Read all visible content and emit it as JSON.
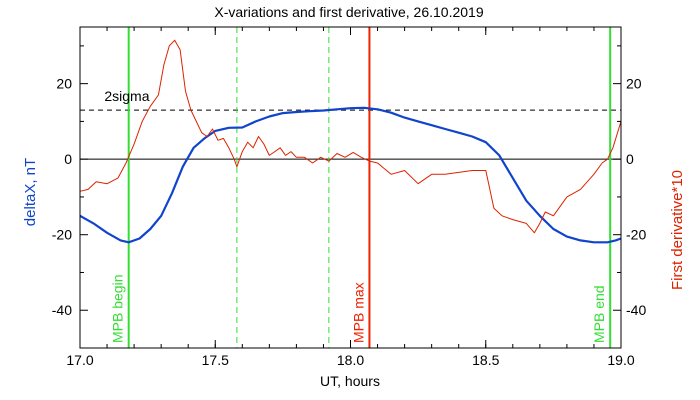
{
  "chart_data": {
    "type": "line",
    "title": "X-variations and first derivative, 26.10.2019",
    "xlabel": "UT, hours",
    "ylabel_left": "deltaX, nT",
    "ylabel_right": "First derivative*10",
    "xlim": [
      17.0,
      19.0
    ],
    "ylim": [
      -50,
      35
    ],
    "xticks": [
      {
        "value": 17.0,
        "label": "17.0"
      },
      {
        "value": 17.5,
        "label": "17.5"
      },
      {
        "value": 18.0,
        "label": "18.0"
      },
      {
        "value": 18.5,
        "label": "18.5"
      },
      {
        "value": 19.0,
        "label": "19.0"
      }
    ],
    "yticks_left": [
      {
        "value": 20,
        "label": "20"
      },
      {
        "value": 0,
        "label": "0"
      },
      {
        "value": -20,
        "label": "-20"
      },
      {
        "value": -40,
        "label": "-40"
      }
    ],
    "yticks_right": [
      {
        "value": 20,
        "label": "20"
      },
      {
        "value": 0,
        "label": "0"
      },
      {
        "value": -20,
        "label": "-20"
      },
      {
        "value": -40,
        "label": "-40"
      }
    ],
    "sigma_level": {
      "value": 13,
      "label": "2sigma",
      "color": "#000000"
    },
    "zero_line": {
      "value": 0,
      "color": "#000000"
    },
    "vertical_markers": [
      {
        "x": 17.18,
        "label": "MPB begin",
        "color": "#33dd33",
        "style": "solid"
      },
      {
        "x": 17.58,
        "label": "",
        "color": "#33dd33",
        "style": "dashed"
      },
      {
        "x": 17.92,
        "label": "",
        "color": "#33dd33",
        "style": "dashed"
      },
      {
        "x": 18.07,
        "label": "MPB max",
        "color": "#ee2200",
        "style": "solid"
      },
      {
        "x": 18.96,
        "label": "MPB end",
        "color": "#33dd33",
        "style": "solid"
      }
    ],
    "series": [
      {
        "key": "deltaX",
        "color": "#1144cc",
        "x": [
          17.0,
          17.05,
          17.1,
          17.15,
          17.18,
          17.22,
          17.26,
          17.3,
          17.34,
          17.38,
          17.42,
          17.46,
          17.5,
          17.55,
          17.6,
          17.65,
          17.7,
          17.75,
          17.8,
          17.85,
          17.9,
          17.95,
          18.0,
          18.05,
          18.1,
          18.15,
          18.2,
          18.25,
          18.3,
          18.35,
          18.4,
          18.45,
          18.5,
          18.55,
          18.6,
          18.65,
          18.7,
          18.75,
          18.8,
          18.85,
          18.9,
          18.95,
          18.98,
          19.0
        ],
        "y": [
          -15,
          -17,
          -19.5,
          -21.5,
          -22,
          -21,
          -18.5,
          -15,
          -9,
          -2,
          3,
          5.5,
          7.5,
          8.3,
          8.4,
          10,
          11.3,
          12.2,
          12.5,
          12.7,
          12.9,
          13.2,
          13.5,
          13.6,
          13.2,
          12.3,
          11,
          10,
          9,
          8,
          7,
          6,
          4.5,
          1,
          -5,
          -11,
          -15,
          -18.5,
          -20.5,
          -21.5,
          -22,
          -22,
          -21.5,
          -21
        ]
      },
      {
        "key": "derivative",
        "color": "#dd2200",
        "x": [
          17.0,
          17.03,
          17.06,
          17.1,
          17.14,
          17.17,
          17.2,
          17.23,
          17.26,
          17.29,
          17.31,
          17.33,
          17.35,
          17.37,
          17.39,
          17.41,
          17.43,
          17.45,
          17.47,
          17.49,
          17.51,
          17.53,
          17.55,
          17.57,
          17.58,
          17.6,
          17.62,
          17.64,
          17.66,
          17.68,
          17.7,
          17.72,
          17.74,
          17.76,
          17.78,
          17.8,
          17.83,
          17.86,
          17.89,
          17.92,
          17.95,
          17.98,
          18.01,
          18.04,
          18.07,
          18.1,
          18.15,
          18.2,
          18.25,
          18.3,
          18.35,
          18.4,
          18.45,
          18.5,
          18.53,
          18.56,
          18.6,
          18.65,
          18.68,
          18.7,
          18.72,
          18.75,
          18.8,
          18.85,
          18.9,
          18.93,
          18.95,
          18.97,
          19.0
        ],
        "y": [
          -8.5,
          -8,
          -6,
          -6.5,
          -5,
          -1,
          4,
          10,
          14,
          17,
          25,
          30,
          31.5,
          29,
          18,
          13,
          10,
          7,
          6,
          8,
          5,
          5.5,
          3,
          0,
          -2,
          2,
          4.5,
          3,
          6,
          4,
          1,
          2,
          3,
          1,
          2,
          0.5,
          0.5,
          -1,
          0.5,
          -0.5,
          1.5,
          0.5,
          1.8,
          0.5,
          -0.5,
          -1,
          -4,
          -3,
          -6.5,
          -4,
          -4,
          -3.5,
          -3,
          -3,
          -13,
          -15,
          -16,
          -17,
          -19.5,
          -17,
          -14,
          -15,
          -10,
          -8,
          -4,
          -1,
          0,
          3,
          10
        ]
      }
    ]
  }
}
